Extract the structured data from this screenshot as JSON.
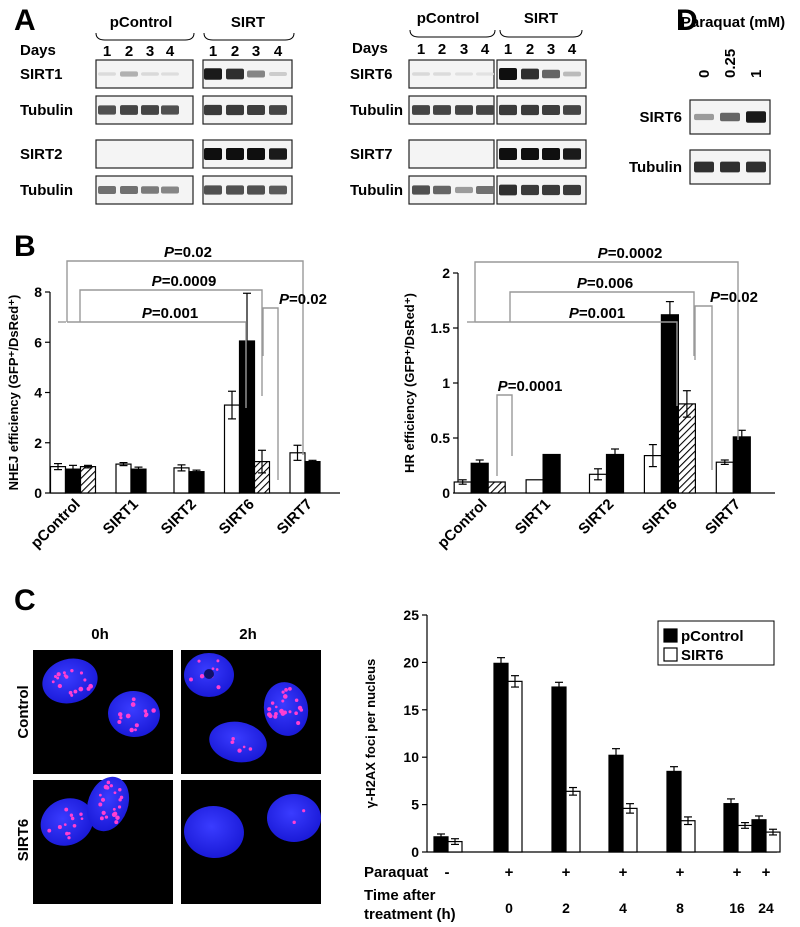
{
  "panel_labels": [
    "A",
    "B",
    "C",
    "D"
  ],
  "panel_a": {
    "groups": [
      "pControl",
      "SIRT"
    ],
    "days_label": "Days",
    "days": [
      "1",
      "2",
      "3",
      "4"
    ],
    "blot_rows_left": [
      "SIRT1",
      "Tubulin",
      "SIRT2",
      "Tubulin"
    ],
    "blot_rows_right": [
      "SIRT6",
      "Tubulin",
      "SIRT7",
      "Tubulin"
    ],
    "intensity_left": [
      [
        0.05,
        0.25,
        0.06,
        0.04,
        0.95,
        0.85,
        0.45,
        0.12
      ],
      [
        0.7,
        0.75,
        0.75,
        0.7,
        0.8,
        0.8,
        0.78,
        0.75
      ],
      [
        0,
        0,
        0,
        0,
        1,
        1,
        1,
        0.95
      ],
      [
        0.55,
        0.55,
        0.5,
        0.45,
        0.7,
        0.7,
        0.7,
        0.65
      ]
    ],
    "intensity_right": [
      [
        0.06,
        0.05,
        0.03,
        0.02,
        1,
        0.85,
        0.6,
        0.2
      ],
      [
        0.75,
        0.75,
        0.75,
        0.75,
        0.8,
        0.8,
        0.78,
        0.75
      ],
      [
        0,
        0,
        0,
        0,
        1,
        1,
        1,
        0.95
      ],
      [
        0.7,
        0.6,
        0.35,
        0.55,
        0.85,
        0.8,
        0.8,
        0.8
      ]
    ]
  },
  "panel_d": {
    "title": "Paraquat (mM)",
    "concentrations": [
      "0",
      "0.25",
      "1"
    ],
    "rows": [
      "SIRT6",
      "Tubulin"
    ],
    "intensity": [
      [
        0.35,
        0.6,
        0.95
      ],
      [
        0.85,
        0.85,
        0.85
      ]
    ]
  },
  "chart_data": [
    {
      "type": "bar",
      "panel": "B-left",
      "ylabel": "NHEJ efficiency (GFP⁺/DsRed⁺)",
      "ylim": [
        0,
        8
      ],
      "yticks": [
        "0",
        "2",
        "4",
        "6",
        "8"
      ],
      "categories": [
        "pControl",
        "SIRT1",
        "SIRT2",
        "SIRT6",
        "SIRT7"
      ],
      "series": [
        {
          "style": "white",
          "values": [
            1.05,
            1.15,
            1.0,
            3.5,
            1.6
          ],
          "errors": [
            0.12,
            0.06,
            0.12,
            0.55,
            0.3
          ]
        },
        {
          "style": "black",
          "values": [
            0.95,
            0.95,
            0.85,
            6.05,
            1.25
          ],
          "errors": [
            0.15,
            0.08,
            0.06,
            1.9,
            0.05
          ]
        },
        {
          "style": "hatched",
          "values": [
            1.05,
            null,
            null,
            1.25,
            null
          ],
          "errors": [
            0.05,
            null,
            null,
            0.45,
            null
          ]
        }
      ],
      "annotations": [
        {
          "label": "P",
          "value": "=0.02"
        },
        {
          "label": "P",
          "value": "=0.0009"
        },
        {
          "label": "P",
          "value": "=0.001"
        },
        {
          "label": "P",
          "value": "=0.02"
        }
      ]
    },
    {
      "type": "bar",
      "panel": "B-right",
      "ylabel": "HR efficiency (GFP⁺/DsRed⁺)",
      "ylim": [
        0,
        2
      ],
      "yticks": [
        "0",
        "0.5",
        "1",
        "1.5",
        "2"
      ],
      "categories": [
        "pControl",
        "SIRT1",
        "SIRT2",
        "SIRT6",
        "SIRT7"
      ],
      "series": [
        {
          "style": "white",
          "values": [
            0.1,
            0.12,
            0.17,
            0.34,
            0.28
          ],
          "errors": [
            0.02,
            0.0,
            0.05,
            0.1,
            0.02
          ]
        },
        {
          "style": "black",
          "values": [
            0.27,
            0.35,
            0.35,
            1.62,
            0.51
          ],
          "errors": [
            0.03,
            0.0,
            0.05,
            0.12,
            0.06
          ]
        },
        {
          "style": "hatched",
          "values": [
            0.1,
            null,
            null,
            0.81,
            null
          ],
          "errors": [
            0.0,
            null,
            null,
            0.12,
            null
          ]
        }
      ],
      "annotations": [
        {
          "label": "P",
          "value": "=0.0002"
        },
        {
          "label": "P",
          "value": "=0.006"
        },
        {
          "label": "P",
          "value": "=0.001"
        },
        {
          "label": "P",
          "value": "=0.02"
        },
        {
          "label": "P",
          "value": "=0.0001"
        }
      ]
    },
    {
      "type": "bar",
      "panel": "C-right",
      "ylabel": "γ-H2AX foci per nucleus",
      "ylim": [
        0,
        25
      ],
      "yticks": [
        "0",
        "5",
        "10",
        "15",
        "20",
        "25"
      ],
      "legend": "top-right",
      "categories": [
        "",
        "0",
        "2",
        "4",
        "8",
        "16",
        "24"
      ],
      "paraquat_label": "Paraquat",
      "paraquat": [
        "-",
        "+",
        "+",
        "+",
        "+",
        "+",
        "+"
      ],
      "time_label_1": "Time after",
      "time_label_2": "treatment (h)",
      "series": [
        {
          "name": "pControl",
          "style": "black",
          "values": [
            1.6,
            19.9,
            17.4,
            10.2,
            8.5,
            5.1,
            3.4
          ],
          "errors": [
            0.3,
            0.6,
            0.5,
            0.7,
            0.5,
            0.5,
            0.4
          ]
        },
        {
          "name": "SIRT6",
          "style": "white",
          "values": [
            1.1,
            18.0,
            6.4,
            4.6,
            3.3,
            2.8,
            2.1
          ],
          "errors": [
            0.3,
            0.6,
            0.4,
            0.5,
            0.4,
            0.3,
            0.3
          ]
        }
      ]
    }
  ],
  "panel_c_images": {
    "col_labels": [
      "0h",
      "2h"
    ],
    "row_labels": [
      "Control",
      "SIRT6"
    ]
  }
}
